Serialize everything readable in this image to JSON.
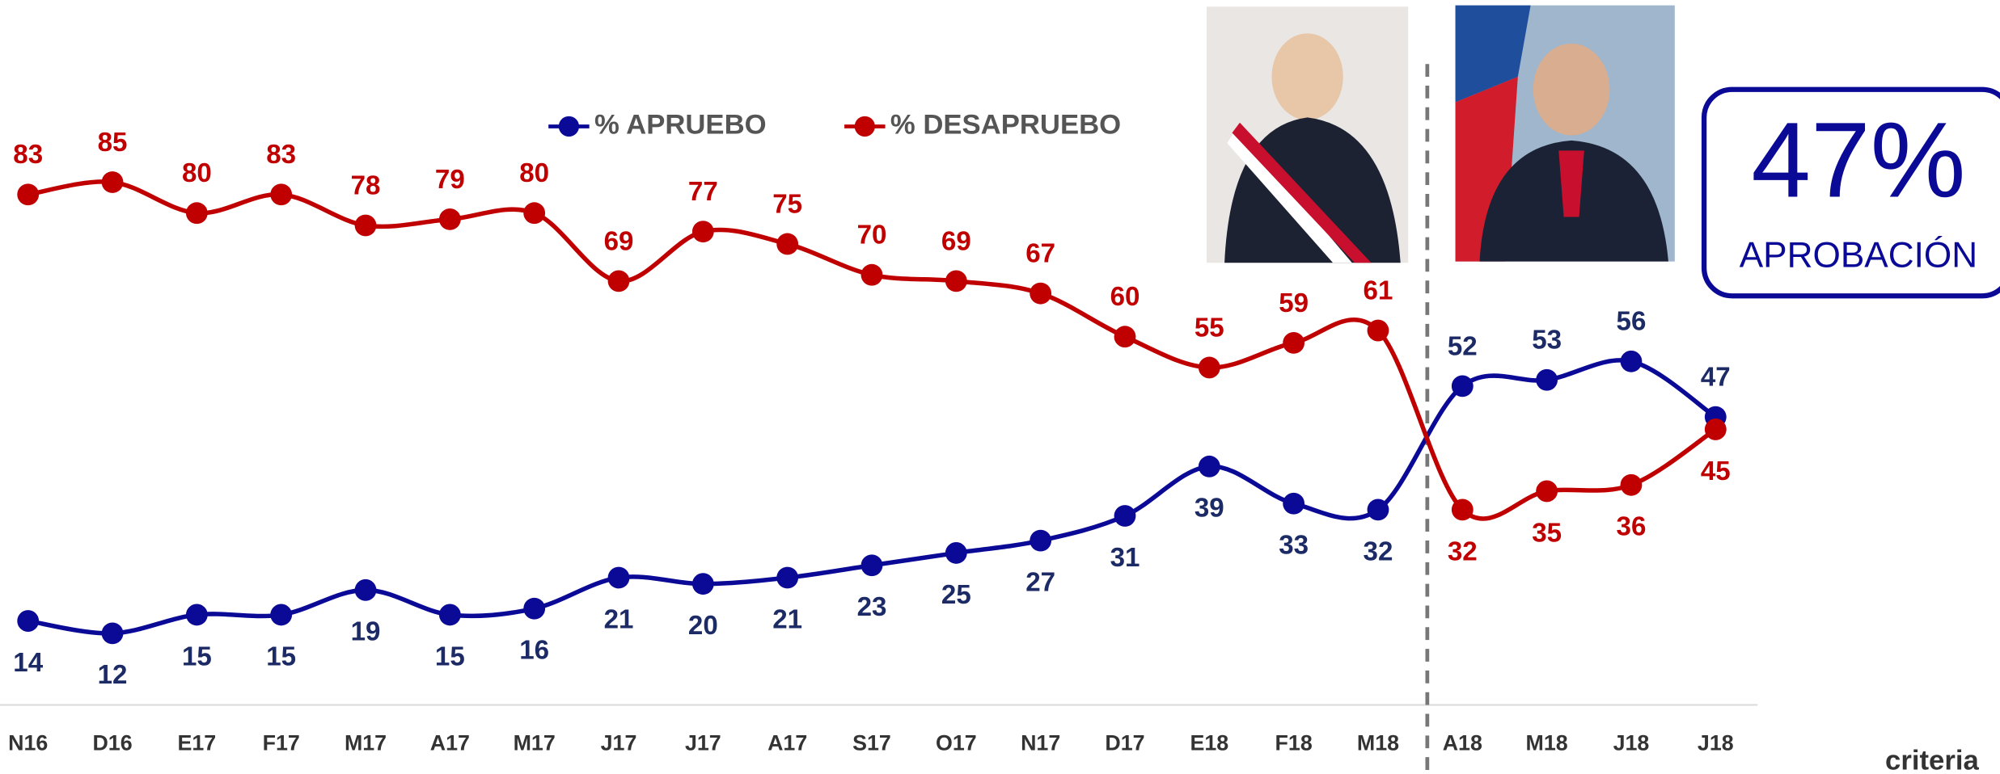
{
  "chart_data": {
    "type": "line",
    "categories": [
      "N16",
      "D16",
      "E17",
      "F17",
      "M17",
      "A17",
      "M17",
      "J17",
      "J17",
      "A17",
      "S17",
      "O17",
      "N17",
      "D17",
      "E18",
      "F18",
      "M18",
      "A18",
      "M18",
      "J18",
      "J18"
    ],
    "series": [
      {
        "name": "% APRUEBO",
        "color": "#0a0a96",
        "label_color": "#1c2a66",
        "values": [
          14,
          12,
          15,
          15,
          19,
          15,
          16,
          21,
          20,
          21,
          23,
          25,
          27,
          31,
          39,
          33,
          32,
          52,
          53,
          56,
          47
        ]
      },
      {
        "name": "% DESAPRUEBO",
        "color": "#c00000",
        "label_color": "#c00000",
        "values": [
          83,
          85,
          80,
          83,
          78,
          79,
          80,
          69,
          77,
          75,
          70,
          69,
          67,
          60,
          55,
          59,
          61,
          32,
          35,
          36,
          45
        ]
      }
    ],
    "ylim": [
      0,
      100
    ],
    "highlight": {
      "value": "47%",
      "label": "APROBACIÓN"
    },
    "logo": "criteria"
  }
}
